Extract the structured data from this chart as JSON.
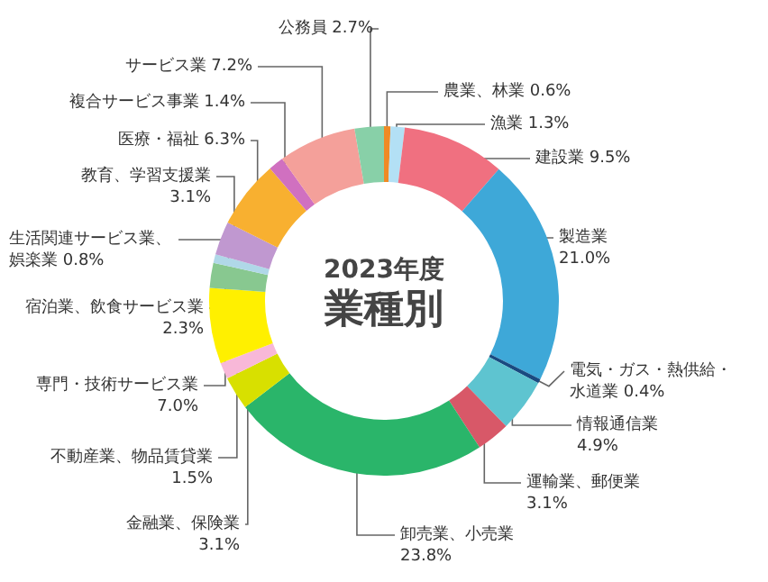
{
  "chart_data": {
    "type": "donut",
    "title": "2023年度",
    "subtitle": "業種別",
    "categories": [
      "農業、林業",
      "漁業",
      "建設業",
      "製造業",
      "電気・ガス・熱供給・水道業",
      "情報通信業",
      "運輸業、郵便業",
      "卸売業、小売業",
      "金融業、保険業",
      "不動産業、物品賃貸業",
      "専門・技術サービス業",
      "宿泊業、飲食サービス業",
      "生活関連サービス業、娯楽業",
      "教育、学習支援業",
      "医療・福祉",
      "複合サービス事業",
      "サービス業",
      "公務員"
    ],
    "values": [
      0.6,
      1.3,
      9.5,
      21.0,
      0.4,
      4.9,
      3.1,
      23.8,
      3.1,
      1.5,
      7.0,
      2.3,
      0.8,
      3.1,
      6.3,
      1.4,
      7.2,
      2.7
    ],
    "value_labels": [
      "0.6%",
      "1.3%",
      "9.5%",
      "21.0%",
      "0.4%",
      "4.9%",
      "3.1%",
      "23.8%",
      "3.1%",
      "1.5%",
      "7.0%",
      "2.3%",
      "0.8%",
      "3.1%",
      "6.3%",
      "1.4%",
      "7.2%",
      "2.7%"
    ],
    "colors": [
      "#f08a24",
      "#b3e0f5",
      "#f07080",
      "#3ea8d8",
      "#1a4a80",
      "#5ec4d0",
      "#d85868",
      "#2ab56a",
      "#d8e000",
      "#f8b8d8",
      "#fff000",
      "#88c890",
      "#b0d8e8",
      "#c098d0",
      "#f8b030",
      "#d070c0",
      "#f4a09a",
      "#88d0a8"
    ]
  }
}
